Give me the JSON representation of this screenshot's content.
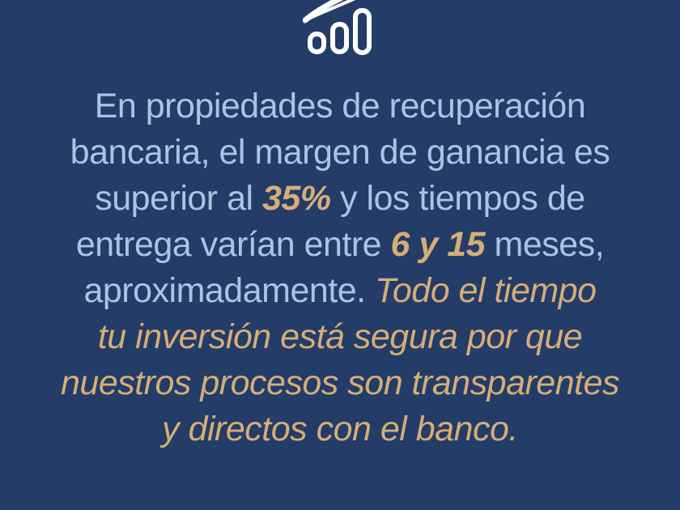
{
  "colors": {
    "background": "#243C68",
    "text_blue": "#A9C5E5",
    "text_gold": "#D5AE77",
    "icon_white": "#FFFFFF"
  },
  "icons": {
    "header": "growth-bar-chart-icon"
  },
  "paragraph": {
    "lines": [
      {
        "segments": [
          {
            "text": "En propiedades de recuperación",
            "style": "blue"
          }
        ]
      },
      {
        "segments": [
          {
            "text": "bancaria, el margen de ganancia es",
            "style": "blue"
          }
        ]
      },
      {
        "segments": [
          {
            "text": "superior al ",
            "style": "blue"
          },
          {
            "text": "35%",
            "style": "gold-bold"
          },
          {
            "text": " y los tiempos de",
            "style": "blue"
          }
        ]
      },
      {
        "segments": [
          {
            "text": "entrega varían entre ",
            "style": "blue"
          },
          {
            "text": "6 y 15",
            "style": "gold-bold"
          },
          {
            "text": " meses,",
            "style": "blue"
          }
        ]
      },
      {
        "segments": [
          {
            "text": "aproximadamente. ",
            "style": "blue"
          },
          {
            "text": "Todo el tiempo",
            "style": "gold-italic"
          }
        ]
      },
      {
        "segments": [
          {
            "text": "tu inversión está segura por que",
            "style": "gold-italic"
          }
        ]
      },
      {
        "segments": [
          {
            "text": "nuestros procesos son transparentes",
            "style": "gold-italic"
          }
        ]
      },
      {
        "segments": [
          {
            "text": "y directos con el banco.",
            "style": "gold-italic"
          }
        ]
      }
    ]
  }
}
